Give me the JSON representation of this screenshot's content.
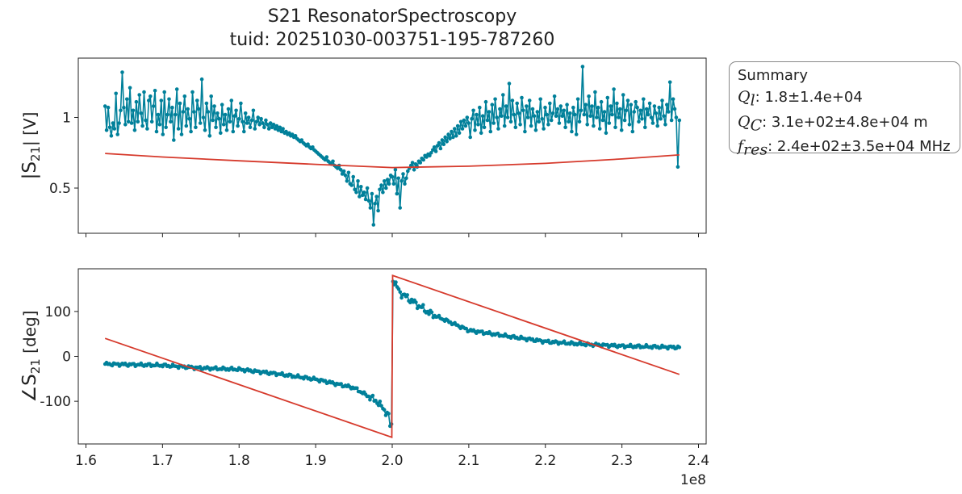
{
  "title": {
    "line1": "S21 ResonatorSpectroscopy",
    "line2": "tuid: 20251030-003751-195-787260"
  },
  "summary": {
    "heading": "Summary",
    "rows": [
      {
        "symbol": "Q",
        "sub": "l",
        "value": ": 1.8±1.4e+04"
      },
      {
        "symbol": "Q",
        "sub": "C",
        "value": ": 3.1e+02±4.8e+04 m"
      },
      {
        "symbol": "f",
        "sub": "res",
        "value": ": 2.4e+02±3.5e+04 MHz"
      }
    ]
  },
  "colors": {
    "data": "#00809a",
    "fit": "#d63a2c",
    "axis": "#222222"
  },
  "chart_data": [
    {
      "type": "line",
      "name_on_axis": "magnitude",
      "ylabel_main": "|S",
      "ylabel_sub": "21",
      "ylabel_tail": "| [V]",
      "xlim": [
        159000000.0,
        241000000.0
      ],
      "ylim": [
        0.18,
        1.42
      ],
      "yticks": [
        0.5,
        1
      ],
      "ytick_labels": [
        "0.5",
        "1"
      ],
      "xticks": [
        160000000.0,
        170000000.0,
        180000000.0,
        190000000.0,
        200000000.0,
        210000000.0,
        220000000.0,
        230000000.0,
        240000000.0
      ],
      "xtick_labels": [],
      "series": [
        {
          "name": "",
          "kind": "data-markers",
          "x_start": 162500000.0,
          "x_end": 237500000.0,
          "y": [
            1.08,
            0.91,
            1.07,
            0.93,
            0.87,
            0.96,
            0.92,
            1.17,
            0.88,
            0.96,
            1.05,
            1.32,
            1.07,
            0.95,
            1.13,
            0.97,
            1.21,
            0.96,
            1.05,
            0.91,
            1.11,
            0.97,
            1.16,
            1.03,
            0.94,
            1.18,
            0.98,
            0.92,
            1.12,
            1.15,
            0.97,
            1.08,
            1.19,
            0.9,
            1.02,
            0.95,
            1.12,
            0.88,
            1.18,
            0.93,
            1.02,
            1.13,
            0.97,
            1.07,
            0.84,
            1.02,
            1.2,
            0.92,
            1.1,
            0.88,
            1.04,
            1.15,
            0.94,
            1.06,
            0.99,
            0.9,
            1.18,
            1.04,
            0.93,
            1.12,
            1.06,
            0.96,
            1.27,
            1.0,
            0.91,
            1.1,
            1.04,
            0.87,
            1.15,
            0.98,
            1.08,
            0.93,
            1.03,
            0.99,
            0.89,
            1.09,
            0.95,
            1.02,
            0.91,
            1.06,
            0.97,
            1.12,
            0.9,
            1.01,
            1.05,
            0.94,
            0.99,
            1.1,
            0.97,
            0.9,
            1.03,
            0.96,
            1.0,
            0.93,
            0.98,
            1.05,
            0.92,
            0.97,
            1.0,
            0.95,
            0.99,
            0.96,
            0.93,
            0.98,
            0.95,
            0.92,
            0.96,
            0.93,
            0.95,
            0.92,
            0.94,
            0.91,
            0.93,
            0.9,
            0.92,
            0.89,
            0.9,
            0.88,
            0.89,
            0.87,
            0.88,
            0.86,
            0.87,
            0.85,
            0.84,
            0.83,
            0.84,
            0.82,
            0.81,
            0.8,
            0.81,
            0.79,
            0.78,
            0.79,
            0.77,
            0.76,
            0.75,
            0.74,
            0.73,
            0.72,
            0.71,
            0.7,
            0.72,
            0.69,
            0.68,
            0.67,
            0.69,
            0.66,
            0.65,
            0.64,
            0.66,
            0.63,
            0.6,
            0.62,
            0.59,
            0.55,
            0.61,
            0.53,
            0.52,
            0.58,
            0.49,
            0.47,
            0.55,
            0.44,
            0.51,
            0.45,
            0.47,
            0.42,
            0.5,
            0.41,
            0.36,
            0.46,
            0.24,
            0.39,
            0.44,
            0.34,
            0.49,
            0.52,
            0.47,
            0.55,
            0.5,
            0.56,
            0.53,
            0.59,
            0.58,
            0.53,
            0.63,
            0.46,
            0.57,
            0.36,
            0.55,
            0.6,
            0.53,
            0.57,
            0.62,
            0.64,
            0.66,
            0.68,
            0.63,
            0.67,
            0.65,
            0.69,
            0.68,
            0.71,
            0.7,
            0.73,
            0.72,
            0.74,
            0.73,
            0.75,
            0.77,
            0.79,
            0.76,
            0.8,
            0.82,
            0.78,
            0.84,
            0.81,
            0.86,
            0.83,
            0.88,
            0.85,
            0.9,
            0.86,
            0.92,
            0.87,
            0.94,
            0.89,
            0.97,
            0.92,
            0.98,
            0.94,
            1.0,
            0.96,
            0.86,
            0.99,
            1.05,
            0.91,
            1.02,
            0.95,
            1.07,
            0.89,
            1.01,
            0.93,
            1.11,
            0.98,
            1.04,
            0.9,
            1.09,
            0.96,
            1.13,
            1.0,
            0.92,
            1.06,
            1.01,
            1.16,
            0.94,
            1.08,
            1.0,
            1.24,
            0.97,
            1.12,
            1.02,
            0.93,
            1.1,
            1.03,
            0.95,
            1.14,
            1.05,
            0.9,
            1.08,
            1.0,
            1.12,
            0.94,
            1.06,
            1.01,
            0.91,
            1.04,
            0.97,
            1.13,
            0.99,
            0.92,
            1.07,
            1.02,
            0.95,
            1.1,
            0.98,
            1.03,
            1.15,
            1.01,
            1.06,
            0.96,
            1.08,
            1.01,
            1.05,
            0.93,
            1.09,
            0.97,
            1.03,
            0.9,
            1.07,
            1.02,
            0.88,
            1.13,
            0.97,
            1.05,
            1.36,
            1.02,
            1.09,
            0.95,
            1.15,
            1.01,
            1.08,
            0.94,
            1.18,
            1.0,
            1.07,
            0.92,
            1.11,
            0.98,
            1.04,
            0.89,
            1.14,
            0.96,
            1.08,
            1.02,
            1.2,
            0.93,
            1.1,
            1.0,
            1.06,
            0.91,
            1.16,
            0.98,
            1.05,
            1.12,
            0.95,
            1.09,
            0.9,
            1.04,
            1.11,
            1.07,
            0.97,
            1.05,
            0.99,
            1.13,
            0.93,
            1.06,
            1.02,
            1.1,
            1.0,
            0.96,
            1.08,
            1.03,
            0.94,
            1.07,
            0.99,
            1.12,
            1.01,
            0.95,
            1.09,
            1.04,
            1.25,
            0.98,
            1.13,
            1.06,
            1.0,
            0.65,
            0.98
          ]
        },
        {
          "name": "",
          "kind": "fit",
          "x": [
            162500000.0,
            170000000.0,
            180000000.0,
            190000000.0,
            200000000.0,
            210000000.0,
            220000000.0,
            230000000.0,
            237500000.0
          ],
          "y": [
            0.745,
            0.72,
            0.693,
            0.668,
            0.645,
            0.655,
            0.675,
            0.706,
            0.735
          ]
        }
      ]
    },
    {
      "type": "line",
      "name_on_axis": "phase",
      "ylabel_main": "∠S",
      "ylabel_sub": "21",
      "ylabel_tail": " [deg]",
      "xlim": [
        159000000.0,
        241000000.0
      ],
      "ylim": [
        -195,
        195
      ],
      "yticks": [
        -100,
        0,
        100
      ],
      "ytick_labels": [
        "-100",
        "0",
        "100"
      ],
      "xticks": [
        160000000.0,
        170000000.0,
        180000000.0,
        190000000.0,
        200000000.0,
        210000000.0,
        220000000.0,
        230000000.0,
        240000000.0
      ],
      "xtick_labels": [
        "1.6",
        "1.7",
        "1.8",
        "1.9",
        "2.0",
        "2.1",
        "2.2",
        "2.3",
        "2.4"
      ],
      "offset_label": "1e8",
      "series": [
        {
          "name": "",
          "kind": "data-markers-phase",
          "anchors_x": [
            162500000.0,
            170000000.0,
            175000000.0,
            180000000.0,
            185000000.0,
            190000000.0,
            195000000.0,
            198000000.0,
            199500000.0,
            199900000.0,
            200000000.0,
            201000000.0,
            205000000.0,
            210000000.0,
            215000000.0,
            220000000.0,
            225000000.0,
            230000000.0,
            237500000.0
          ],
          "anchors_y": [
            -17,
            -20,
            -26,
            -29,
            -39,
            -51,
            -70,
            -100,
            -130,
            -175,
            175,
            142,
            95,
            58,
            45,
            33,
            27,
            23,
            20
          ]
        },
        {
          "name": "",
          "kind": "fit",
          "x": [
            162500000.0,
            199950000.0,
            200050000.0,
            237500000.0
          ],
          "y": [
            40,
            -180,
            180,
            -40
          ]
        }
      ]
    }
  ]
}
